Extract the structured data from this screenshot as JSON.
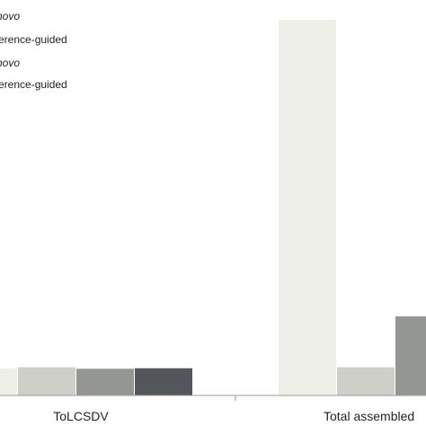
{
  "chart_data": {
    "type": "bar",
    "categories": [
      "ToLCSDV",
      "Total assembled"
    ],
    "series": [
      {
        "name": "novo",
        "color": "#efefe9",
        "values": [
          55,
          760
        ]
      },
      {
        "name": "erence-guided",
        "color": "#cfcfc9",
        "values": [
          57,
          57
        ]
      },
      {
        "name": "novo",
        "color": "#939692",
        "values": [
          54,
          160
        ]
      },
      {
        "name": "erence-guided",
        "color": "#53565a",
        "values": [
          55,
          null
        ]
      }
    ],
    "ylim": [
      0,
      800
    ],
    "grid": false,
    "legend_position": "top-left"
  },
  "legend": [
    {
      "label": "novo",
      "style": "italic"
    },
    {
      "label": "erence-guided",
      "style": "normal"
    },
    {
      "label": "novo",
      "style": "italic"
    },
    {
      "label": "erence-guided",
      "style": "normal"
    }
  ]
}
